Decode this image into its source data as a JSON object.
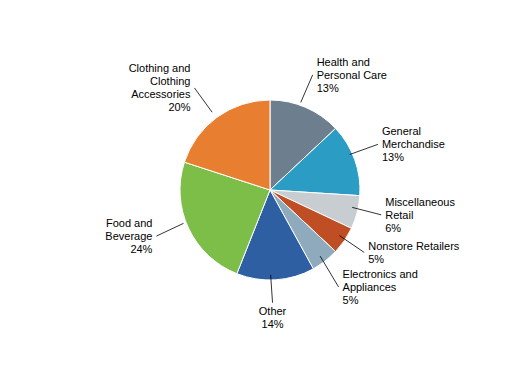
{
  "chart_data": {
    "type": "pie",
    "categories": [
      "Health and\nPersonal Care\n13%",
      "General\nMerchandise\n13%",
      "Miscellaneous\nRetail\n6%",
      "Nonstore Retailers\n5%",
      "Electronics and\nAppliances\n5%",
      "Other\n14%",
      "Food and\nBeverage\n24%",
      "Clothing and\nClothing\nAccessories\n20%"
    ],
    "values": [
      13,
      13,
      6,
      5,
      5,
      14,
      24,
      20
    ],
    "colors": [
      "#6d7f8f",
      "#2b9cc4",
      "#c8cdd1",
      "#bf4e25",
      "#8faabc",
      "#2e5fa3",
      "#7dbe49",
      "#e87f30"
    ]
  }
}
